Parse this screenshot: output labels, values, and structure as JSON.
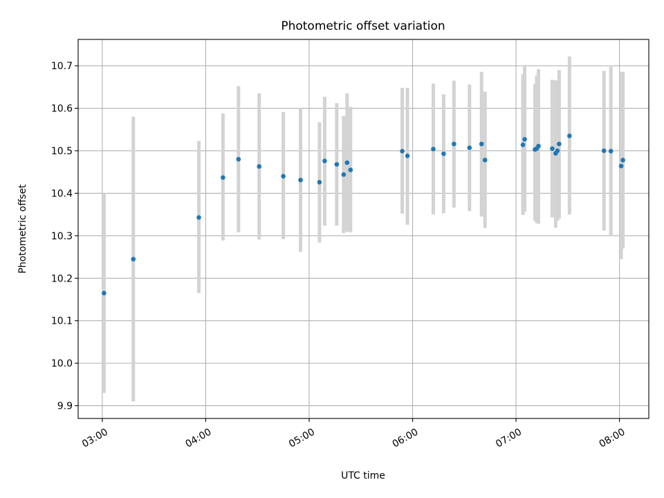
{
  "chart_data": {
    "type": "scatter",
    "title": "Photometric offset variation",
    "xlabel": "UTC time",
    "ylabel": "Photometric offset",
    "xlim": [
      "02:46",
      "08:17"
    ],
    "ylim": [
      9.87,
      10.762
    ],
    "x_ticks": [
      "03:00",
      "04:00",
      "05:00",
      "06:00",
      "07:00",
      "08:00"
    ],
    "y_ticks": [
      9.9,
      10.0,
      10.1,
      10.2,
      10.3,
      10.4,
      10.5,
      10.6,
      10.7
    ],
    "grid": true,
    "marker_color": "#1f77b4",
    "errorbar_color": "#d3d3d3",
    "points": [
      {
        "x": "03:01",
        "y": 10.165,
        "ylow": 9.93,
        "yhigh": 10.4
      },
      {
        "x": "03:18",
        "y": 10.245,
        "ylow": 9.91,
        "yhigh": 10.58
      },
      {
        "x": "03:56",
        "y": 10.343,
        "ylow": 10.165,
        "yhigh": 10.523
      },
      {
        "x": "04:10",
        "y": 10.437,
        "ylow": 10.289,
        "yhigh": 10.588
      },
      {
        "x": "04:19",
        "y": 10.48,
        "ylow": 10.308,
        "yhigh": 10.652
      },
      {
        "x": "04:31",
        "y": 10.463,
        "ylow": 10.291,
        "yhigh": 10.635
      },
      {
        "x": "04:45",
        "y": 10.44,
        "ylow": 10.292,
        "yhigh": 10.591
      },
      {
        "x": "04:55",
        "y": 10.431,
        "ylow": 10.262,
        "yhigh": 10.6
      },
      {
        "x": "05:06",
        "y": 10.426,
        "ylow": 10.284,
        "yhigh": 10.567
      },
      {
        "x": "05:09",
        "y": 10.476,
        "ylow": 10.324,
        "yhigh": 10.627
      },
      {
        "x": "05:16",
        "y": 10.468,
        "ylow": 10.324,
        "yhigh": 10.612
      },
      {
        "x": "05:20",
        "y": 10.444,
        "ylow": 10.306,
        "yhigh": 10.582
      },
      {
        "x": "05:22",
        "y": 10.472,
        "ylow": 10.309,
        "yhigh": 10.635
      },
      {
        "x": "05:24",
        "y": 10.455,
        "ylow": 10.308,
        "yhigh": 10.603
      },
      {
        "x": "05:54",
        "y": 10.499,
        "ylow": 10.352,
        "yhigh": 10.648
      },
      {
        "x": "05:57",
        "y": 10.488,
        "ylow": 10.326,
        "yhigh": 10.648
      },
      {
        "x": "06:12",
        "y": 10.504,
        "ylow": 10.35,
        "yhigh": 10.658
      },
      {
        "x": "06:18",
        "y": 10.493,
        "ylow": 10.353,
        "yhigh": 10.633
      },
      {
        "x": "06:24",
        "y": 10.516,
        "ylow": 10.366,
        "yhigh": 10.665
      },
      {
        "x": "06:33",
        "y": 10.507,
        "ylow": 10.358,
        "yhigh": 10.656
      },
      {
        "x": "06:40",
        "y": 10.516,
        "ylow": 10.345,
        "yhigh": 10.686
      },
      {
        "x": "06:42",
        "y": 10.478,
        "ylow": 10.318,
        "yhigh": 10.639
      },
      {
        "x": "07:04",
        "y": 10.514,
        "ylow": 10.349,
        "yhigh": 10.68
      },
      {
        "x": "07:05",
        "y": 10.527,
        "ylow": 10.356,
        "yhigh": 10.698
      },
      {
        "x": "07:11",
        "y": 10.503,
        "ylow": 10.335,
        "yhigh": 10.657
      },
      {
        "x": "07:12",
        "y": 10.505,
        "ylow": 10.33,
        "yhigh": 10.677
      },
      {
        "x": "07:13",
        "y": 10.511,
        "ylow": 10.328,
        "yhigh": 10.692
      },
      {
        "x": "07:21",
        "y": 10.505,
        "ylow": 10.343,
        "yhigh": 10.667
      },
      {
        "x": "07:23",
        "y": 10.494,
        "ylow": 10.319,
        "yhigh": 10.666
      },
      {
        "x": "07:24",
        "y": 10.5,
        "ylow": 10.335,
        "yhigh": 10.665
      },
      {
        "x": "07:25",
        "y": 10.516,
        "ylow": 10.34,
        "yhigh": 10.69
      },
      {
        "x": "07:31",
        "y": 10.535,
        "ylow": 10.35,
        "yhigh": 10.722
      },
      {
        "x": "07:51",
        "y": 10.5,
        "ylow": 10.312,
        "yhigh": 10.688
      },
      {
        "x": "07:55",
        "y": 10.499,
        "ylow": 10.3,
        "yhigh": 10.698
      },
      {
        "x": "08:01",
        "y": 10.464,
        "ylow": 10.245,
        "yhigh": 10.686
      },
      {
        "x": "08:02",
        "y": 10.478,
        "ylow": 10.27,
        "yhigh": 10.686
      }
    ]
  }
}
